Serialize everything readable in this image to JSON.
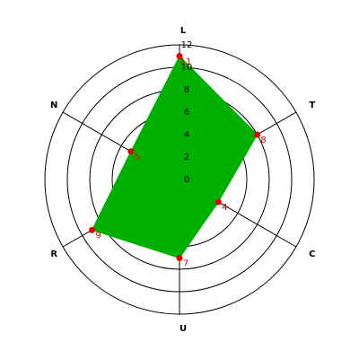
{
  "chart_data": {
    "type": "radar",
    "categories": [
      "L",
      "T",
      "C",
      "U",
      "R",
      "N"
    ],
    "values": [
      11,
      8,
      4,
      7,
      9,
      5
    ],
    "color": "#00b000",
    "point_color": "#e00000",
    "label_color": "#e00000",
    "rlim": [
      0,
      12
    ],
    "rticks": [
      0,
      2,
      4,
      6,
      8,
      10,
      12
    ]
  }
}
